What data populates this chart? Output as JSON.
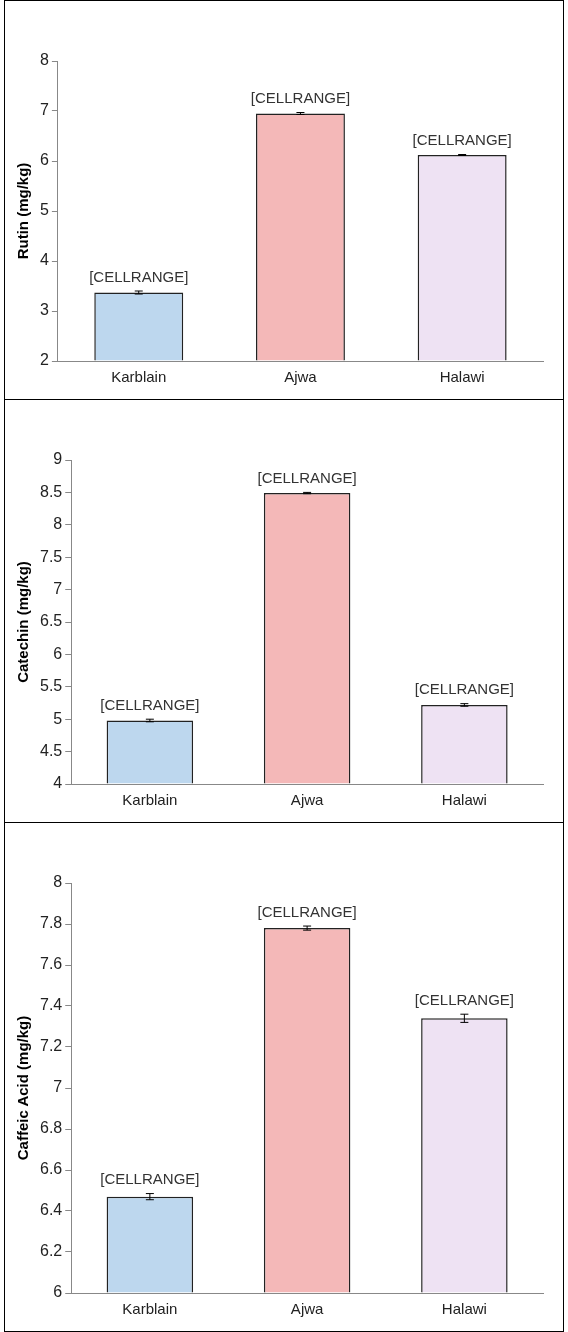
{
  "chart_data": [
    {
      "type": "bar",
      "ylabel": "Rutin (mg/kg)",
      "categories": [
        "Karblain",
        "Ajwa",
        "Halawi"
      ],
      "values": [
        3.37,
        6.95,
        6.12
      ],
      "errors": [
        0.03,
        0.02,
        0.01
      ],
      "colors": [
        "#bdd7ee",
        "#f4b8b8",
        "#eee2f3"
      ],
      "value_labels": [
        "[CELLRANGE]",
        "[CELLRANGE]",
        "[CELLRANGE]"
      ],
      "ylim": [
        2,
        8
      ],
      "yticks": [
        2,
        3,
        4,
        5,
        6,
        7,
        8
      ],
      "grid": false,
      "legend": false
    },
    {
      "type": "bar",
      "ylabel": "Catechin (mg/kg)",
      "categories": [
        "Karblain",
        "Ajwa",
        "Halawi"
      ],
      "values": [
        4.98,
        8.49,
        5.22
      ],
      "errors": [
        0.02,
        0.01,
        0.02
      ],
      "colors": [
        "#bdd7ee",
        "#f4b8b8",
        "#eee2f3"
      ],
      "value_labels": [
        "[CELLRANGE]",
        "[CELLRANGE]",
        "[CELLRANGE]"
      ],
      "ylim": [
        4,
        9
      ],
      "yticks": [
        4,
        4.5,
        5,
        5.5,
        6,
        6.5,
        7,
        7.5,
        8,
        8.5,
        9
      ],
      "grid": false,
      "legend": false
    },
    {
      "type": "bar",
      "ylabel": "Caffeic Acid (mg/kg)",
      "categories": [
        "Karblain",
        "Ajwa",
        "Halawi"
      ],
      "values": [
        6.47,
        7.78,
        7.34
      ],
      "errors": [
        0.015,
        0.01,
        0.02
      ],
      "colors": [
        "#bdd7ee",
        "#f4b8b8",
        "#eee2f3"
      ],
      "value_labels": [
        "[CELLRANGE]",
        "[CELLRANGE]",
        "[CELLRANGE]"
      ],
      "ylim": [
        6,
        8
      ],
      "yticks": [
        6,
        6.2,
        6.4,
        6.6,
        6.8,
        7,
        7.2,
        7.4,
        7.6,
        7.8,
        8
      ],
      "grid": false,
      "legend": false
    }
  ]
}
